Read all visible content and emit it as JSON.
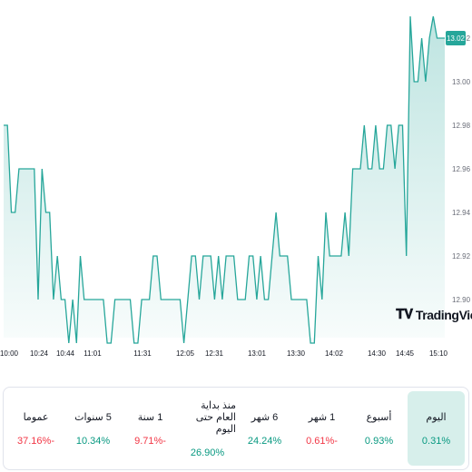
{
  "chart_data": {
    "type": "area",
    "x_ticks": [
      "10:00",
      "10:24",
      "10:44",
      "11:01",
      "11:31",
      "12:05",
      "12:31",
      "13:01",
      "13:30",
      "14:02",
      "14:30",
      "14:45",
      "15:10"
    ],
    "y_ticks": [
      "12.90",
      "12.92",
      "12.94",
      "12.96",
      "12.98",
      "13.00",
      "13.02"
    ],
    "ylim": [
      12.885,
      13.03
    ],
    "last_value": "13.02",
    "values": [
      12.98,
      12.98,
      12.94,
      12.94,
      12.96,
      12.96,
      12.96,
      12.96,
      12.96,
      12.9,
      12.96,
      12.94,
      12.94,
      12.9,
      12.92,
      12.9,
      12.9,
      12.88,
      12.9,
      12.88,
      12.92,
      12.9,
      12.9,
      12.9,
      12.9,
      12.9,
      12.9,
      12.88,
      12.88,
      12.9,
      12.9,
      12.9,
      12.9,
      12.9,
      12.88,
      12.88,
      12.9,
      12.9,
      12.9,
      12.92,
      12.92,
      12.9,
      12.9,
      12.9,
      12.9,
      12.9,
      12.9,
      12.88,
      12.9,
      12.92,
      12.92,
      12.9,
      12.92,
      12.92,
      12.92,
      12.9,
      12.92,
      12.9,
      12.92,
      12.92,
      12.92,
      12.9,
      12.9,
      12.9,
      12.92,
      12.92,
      12.9,
      12.92,
      12.9,
      12.9,
      12.92,
      12.94,
      12.92,
      12.92,
      12.92,
      12.9,
      12.9,
      12.9,
      12.9,
      12.9,
      12.88,
      12.88,
      12.92,
      12.9,
      12.94,
      12.92,
      12.92,
      12.92,
      12.92,
      12.94,
      12.92,
      12.96,
      12.96,
      12.96,
      12.98,
      12.96,
      12.96,
      12.98,
      12.96,
      12.96,
      12.98,
      12.98,
      12.96,
      12.98,
      12.98,
      12.92,
      13.03,
      13.0,
      13.0,
      13.02,
      13.0,
      13.02,
      13.03,
      13.02,
      13.02,
      13.02
    ]
  },
  "watermark": "TradingView",
  "colors": {
    "line": "#26a69a",
    "positive": "#089981",
    "negative": "#f23645",
    "active_bg": "#d7efeb"
  },
  "periods": [
    {
      "label": "اليوم",
      "value": "0.31%",
      "trend": "positive",
      "active": true
    },
    {
      "label": "أسبوع",
      "value": "0.93%",
      "trend": "positive",
      "active": false
    },
    {
      "label": "1 شهر",
      "value": "0.61%-",
      "trend": "negative",
      "active": false
    },
    {
      "label": "6 شهر",
      "value": "24.24%",
      "trend": "positive",
      "active": false
    },
    {
      "label": "منذ بداية العام حتى اليوم",
      "value": "26.90%",
      "trend": "positive",
      "active": false
    },
    {
      "label": "1 سنة",
      "value": "9.71%-",
      "trend": "negative",
      "active": false
    },
    {
      "label": "5 سنوات",
      "value": "10.34%",
      "trend": "positive",
      "active": false
    },
    {
      "label": "عموما",
      "value": "37.16%-",
      "trend": "negative",
      "active": false
    }
  ]
}
